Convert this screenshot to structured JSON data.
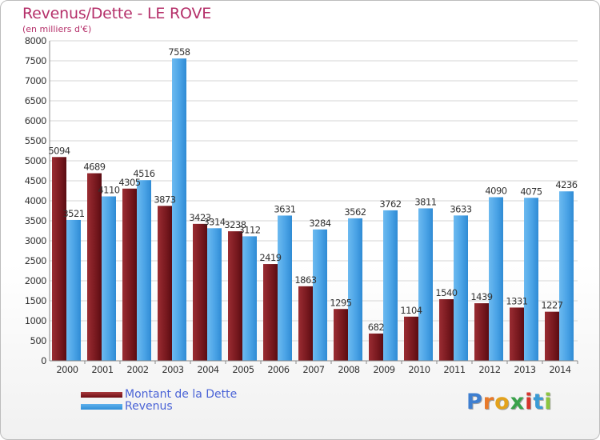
{
  "title": "Revenus/Dette - LE ROVE",
  "subtitle": "(en milliers d'€)",
  "logo": {
    "letters": [
      "P",
      "r",
      "o",
      "x",
      "i",
      "t",
      "i"
    ],
    "colors": [
      "#3f7fd0",
      "#e87a2a",
      "#e3a21c",
      "#3aa24b",
      "#d6342c",
      "#3a9bd5",
      "#8cc63f"
    ]
  },
  "legend": [
    {
      "name": "Montant de la Dette",
      "color": "#7b1a1f"
    },
    {
      "name": "Revenus",
      "color": "#3d9be0"
    }
  ],
  "chart_data": {
    "type": "bar",
    "title": "Revenus/Dette - LE ROVE",
    "ylabel": "(en milliers d'€)",
    "ylim": [
      0,
      8000
    ],
    "yticks": [
      0,
      500,
      1000,
      1500,
      2000,
      2500,
      3000,
      3500,
      4000,
      4500,
      5000,
      5500,
      6000,
      6500,
      7000,
      7500,
      8000
    ],
    "grid": true,
    "legend_position": "bottom-left",
    "categories": [
      "2000",
      "2001",
      "2002",
      "2003",
      "2004",
      "2005",
      "2006",
      "2007",
      "2008",
      "2009",
      "2010",
      "2011",
      "2012",
      "2013",
      "2014"
    ],
    "series": [
      {
        "name": "Montant de la Dette",
        "color": "#7b1a1f",
        "values": [
          5094,
          4689,
          4305,
          3873,
          3423,
          3238,
          2419,
          1863,
          1295,
          682,
          1104,
          1540,
          1439,
          1331,
          1227
        ],
        "labels": [
          "5094",
          "4689",
          "4305",
          "3873",
          "3423",
          "3238",
          "2419",
          "1863",
          "1295",
          "682",
          "1104",
          "1540",
          "1439",
          "1331",
          "1227"
        ]
      },
      {
        "name": "Revenus",
        "color": "#3d9be0",
        "values": [
          3521,
          4110,
          4516,
          7558,
          3314,
          3112,
          3631,
          3284,
          3562,
          3762,
          3811,
          3633,
          4090,
          4075,
          4236
        ],
        "labels": [
          "3521",
          "4110",
          "4516",
          "7558",
          "3314",
          "3112",
          "3631",
          "3284",
          "3562",
          "3762",
          "3811",
          "3633",
          "4090",
          "4075",
          "4236"
        ]
      }
    ]
  }
}
